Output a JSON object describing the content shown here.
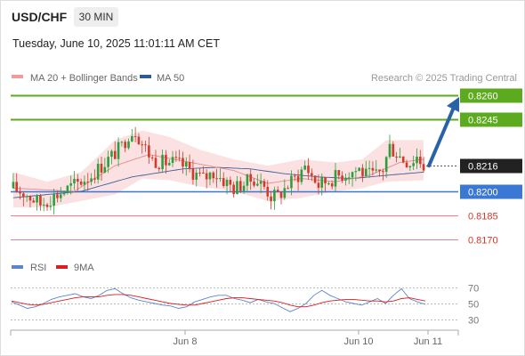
{
  "header": {
    "symbol": "USD/CHF",
    "timeframe": "30 MIN",
    "datetime": "Tuesday, June 10, 2025 11:01:11 AM CET"
  },
  "legend": {
    "ma20_bb": "MA 20 + Bollinger Bands",
    "ma50": "MA 50",
    "source": "Research © 2025 Trading Central"
  },
  "rsi_legend": {
    "rsi": "RSI",
    "ma9": "9MA"
  },
  "colors": {
    "up_candle": "#2e9e3e",
    "down_candle": "#d23a2a",
    "target": "#5cab1e",
    "pivot": "#3b78d6",
    "support": "#f08080",
    "arrow": "#2a62a8",
    "ma50": "#3a5f9f",
    "bb_fill": "#fbe1e1"
  },
  "chart_data": [
    {
      "type": "candlestick",
      "title": "USD/CHF",
      "ylim": [
        0.8163,
        0.827
      ],
      "x_ticks": [
        "Jun 8",
        "Jun 10",
        "Jun 11"
      ],
      "levels": [
        {
          "value": 0.826,
          "label": "0.8260",
          "kind": "target"
        },
        {
          "value": 0.8245,
          "label": "0.8245",
          "kind": "target"
        },
        {
          "value": 0.8216,
          "label": "0.8216",
          "kind": "current"
        },
        {
          "value": 0.82,
          "label": "0.8200",
          "kind": "pivot"
        },
        {
          "value": 0.8185,
          "label": "0.8185",
          "kind": "support"
        },
        {
          "value": 0.817,
          "label": "0.8170",
          "kind": "support"
        }
      ],
      "projection": {
        "from": 0.8216,
        "to": 0.826,
        "direction": "up"
      },
      "anchors": [
        [
          0,
          0.8202
        ],
        [
          4,
          0.8198
        ],
        [
          8,
          0.8192
        ],
        [
          13,
          0.8198
        ],
        [
          18,
          0.8204
        ],
        [
          23,
          0.821
        ],
        [
          28,
          0.822
        ],
        [
          32,
          0.8228
        ],
        [
          34,
          0.8236
        ],
        [
          36,
          0.8238
        ],
        [
          38,
          0.823
        ],
        [
          41,
          0.822
        ],
        [
          44,
          0.8218
        ],
        [
          47,
          0.8218
        ],
        [
          50,
          0.8216
        ],
        [
          53,
          0.8212
        ],
        [
          56,
          0.8208
        ],
        [
          59,
          0.8212
        ],
        [
          62,
          0.8207
        ],
        [
          65,
          0.8202
        ],
        [
          68,
          0.8205
        ],
        [
          71,
          0.8208
        ],
        [
          74,
          0.8203
        ],
        [
          76,
          0.8197
        ],
        [
          78,
          0.8197
        ],
        [
          81,
          0.8204
        ],
        [
          84,
          0.821
        ],
        [
          86,
          0.8216
        ],
        [
          88,
          0.821
        ],
        [
          90,
          0.8204
        ],
        [
          93,
          0.8207
        ],
        [
          96,
          0.821
        ],
        [
          99,
          0.8212
        ],
        [
          102,
          0.8214
        ],
        [
          104,
          0.821
        ],
        [
          107,
          0.821
        ],
        [
          109,
          0.8214
        ],
        [
          111,
          0.8228
        ],
        [
          113,
          0.8224
        ],
        [
          115,
          0.822
        ],
        [
          117,
          0.8218
        ],
        [
          119,
          0.8222
        ],
        [
          121,
          0.8216
        ]
      ],
      "ma20": [
        [
          0,
          0.8202
        ],
        [
          18,
          0.82
        ],
        [
          30,
          0.8216
        ],
        [
          40,
          0.8223
        ],
        [
          55,
          0.8217
        ],
        [
          65,
          0.8213
        ],
        [
          75,
          0.8205
        ],
        [
          85,
          0.8208
        ],
        [
          95,
          0.8206
        ],
        [
          105,
          0.821
        ],
        [
          114,
          0.8218
        ],
        [
          121,
          0.822
        ]
      ],
      "ma50": [
        [
          0,
          0.8196
        ],
        [
          20,
          0.82
        ],
        [
          35,
          0.8209
        ],
        [
          50,
          0.8214
        ],
        [
          60,
          0.8215
        ],
        [
          70,
          0.8214
        ],
        [
          80,
          0.8211
        ],
        [
          90,
          0.8209
        ],
        [
          100,
          0.8208
        ],
        [
          110,
          0.821
        ],
        [
          121,
          0.8212
        ]
      ],
      "bb_upper": [
        [
          0,
          0.8212
        ],
        [
          10,
          0.8206
        ],
        [
          20,
          0.8212
        ],
        [
          30,
          0.8232
        ],
        [
          38,
          0.8238
        ],
        [
          46,
          0.8234
        ],
        [
          55,
          0.8226
        ],
        [
          65,
          0.822
        ],
        [
          75,
          0.8216
        ],
        [
          85,
          0.822
        ],
        [
          95,
          0.8218
        ],
        [
          103,
          0.822
        ],
        [
          110,
          0.8232
        ],
        [
          121,
          0.8232
        ]
      ],
      "bb_lower": [
        [
          0,
          0.819
        ],
        [
          10,
          0.819
        ],
        [
          20,
          0.8194
        ],
        [
          30,
          0.8198
        ],
        [
          38,
          0.8208
        ],
        [
          46,
          0.8207
        ],
        [
          55,
          0.8203
        ],
        [
          65,
          0.82
        ],
        [
          75,
          0.8194
        ],
        [
          85,
          0.8196
        ],
        [
          95,
          0.82
        ],
        [
          103,
          0.8202
        ],
        [
          110,
          0.8206
        ],
        [
          121,
          0.8207
        ]
      ]
    },
    {
      "type": "line",
      "title": "RSI",
      "ylim": [
        25,
        75
      ],
      "y_ticks": [
        70,
        50,
        30
      ],
      "series": [
        {
          "name": "RSI",
          "values": [
            52,
            48,
            44,
            46,
            50,
            55,
            58,
            60,
            62,
            58,
            56,
            60,
            66,
            68,
            62,
            57,
            54,
            52,
            50,
            48,
            47,
            44,
            46,
            52,
            55,
            58,
            60,
            60,
            56,
            54,
            51,
            55,
            52,
            50,
            45,
            40,
            44,
            50,
            60,
            66,
            60,
            56,
            52,
            50,
            48,
            52,
            56,
            50,
            60,
            68,
            56,
            52,
            49
          ]
        },
        {
          "name": "9MA",
          "values": [
            53,
            51,
            49,
            48,
            49,
            51,
            53,
            55,
            57,
            58,
            58,
            58,
            60,
            61,
            61,
            60,
            58,
            56,
            54,
            52,
            50,
            49,
            48,
            48,
            50,
            52,
            54,
            56,
            57,
            57,
            56,
            55,
            54,
            53,
            51,
            48,
            46,
            46,
            48,
            51,
            53,
            54,
            55,
            55,
            54,
            53,
            53,
            52,
            53,
            56,
            57,
            55,
            53
          ]
        }
      ]
    }
  ]
}
